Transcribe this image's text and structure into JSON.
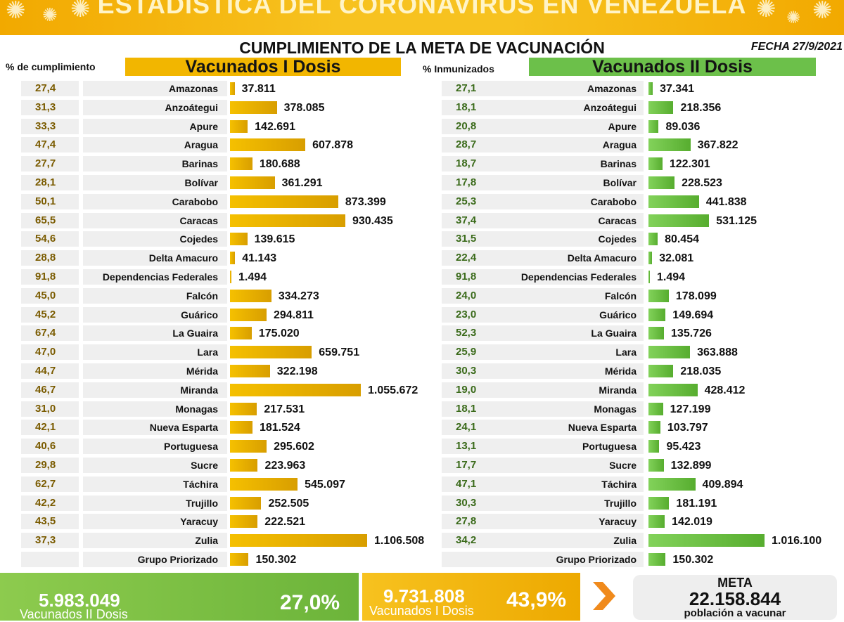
{
  "header": {
    "banner": "ESTADÍSTICA DEL CORONAVIRUS EN VENEZUELA",
    "title": "CUMPLIMIENTO DE LA META DE VACUNACIÓN",
    "date": "FECHA 27/9/2021"
  },
  "left_section": {
    "pct_header": "% de cumplimiento",
    "title": "Vacunados I Dosis",
    "accent": "#f2b600"
  },
  "right_section": {
    "pct_header": "% Inmunizados",
    "title": "Vacunados II Dosis",
    "accent": "#6cc04a"
  },
  "chart_data": [
    {
      "type": "bar",
      "title": "Vacunados I Dosis",
      "xlabel": "",
      "ylabel": "% de cumplimiento",
      "categories": [
        "Amazonas",
        "Anzoátegui",
        "Apure",
        "Aragua",
        "Barinas",
        "Bolívar",
        "Carabobo",
        "Caracas",
        "Cojedes",
        "Delta Amacuro",
        "Dependencias Federales",
        "Falcón",
        "Guárico",
        "La Guaira",
        "Lara",
        "Mérida",
        "Miranda",
        "Monagas",
        "Nueva Esparta",
        "Portuguesa",
        "Sucre",
        "Táchira",
        "Trujillo",
        "Yaracuy",
        "Zulia",
        "Grupo Priorizado"
      ],
      "values": [
        37811,
        378085,
        142691,
        607878,
        180688,
        361291,
        873399,
        930435,
        139615,
        41143,
        1494,
        334273,
        294811,
        175020,
        659751,
        322198,
        1055672,
        217531,
        181524,
        295602,
        223963,
        545097,
        252505,
        222521,
        1106508,
        150302
      ],
      "value_labels": [
        "37.811",
        "378.085",
        "142.691",
        "607.878",
        "180.688",
        "361.291",
        "873.399",
        "930.435",
        "139.615",
        "41.143",
        "1.494",
        "334.273",
        "294.811",
        "175.020",
        "659.751",
        "322.198",
        "1.055.672",
        "217.531",
        "181.524",
        "295.602",
        "223.963",
        "545.097",
        "252.505",
        "222.521",
        "1.106.508",
        "150.302"
      ],
      "percent_labels": [
        "27,4",
        "31,3",
        "33,3",
        "47,4",
        "27,7",
        "28,1",
        "50,1",
        "65,5",
        "54,6",
        "28,8",
        "91,8",
        "45,0",
        "45,2",
        "67,4",
        "47,0",
        "44,7",
        "46,7",
        "31,0",
        "42,1",
        "40,6",
        "29,8",
        "62,7",
        "42,2",
        "43,5",
        "37,3",
        ""
      ],
      "xlim": [
        0,
        1106508
      ],
      "grid": false,
      "legend": "none",
      "color": "#f2b600"
    },
    {
      "type": "bar",
      "title": "Vacunados II Dosis",
      "xlabel": "",
      "ylabel": "% Inmunizados",
      "categories": [
        "Amazonas",
        "Anzoátegui",
        "Apure",
        "Aragua",
        "Barinas",
        "Bolívar",
        "Carabobo",
        "Caracas",
        "Cojedes",
        "Delta Amacuro",
        "Dependencias Federales",
        "Falcón",
        "Guárico",
        "La Guaira",
        "Lara",
        "Mérida",
        "Miranda",
        "Monagas",
        "Nueva Esparta",
        "Portuguesa",
        "Sucre",
        "Táchira",
        "Trujillo",
        "Yaracuy",
        "Zulia",
        "Grupo Priorizado"
      ],
      "values": [
        37341,
        218356,
        89036,
        367822,
        122301,
        228523,
        441838,
        531125,
        80454,
        32081,
        1494,
        178099,
        149694,
        135726,
        363888,
        218035,
        428412,
        127199,
        103797,
        95423,
        132899,
        409894,
        181191,
        142019,
        1016100,
        150302
      ],
      "value_labels": [
        "37.341",
        "218.356",
        "89.036",
        "367.822",
        "122.301",
        "228.523",
        "441.838",
        "531.125",
        "80.454",
        "32.081",
        "1.494",
        "178.099",
        "149.694",
        "135.726",
        "363.888",
        "218.035",
        "428.412",
        "127.199",
        "103.797",
        "95.423",
        "132.899",
        "409.894",
        "181.191",
        "142.019",
        "1.016.100",
        "150.302"
      ],
      "percent_labels": [
        "27,1",
        "18,1",
        "20,8",
        "28,7",
        "18,7",
        "17,8",
        "25,3",
        "37,4",
        "31,5",
        "22,4",
        "91,8",
        "24,0",
        "23,0",
        "52,3",
        "25,9",
        "30,3",
        "19,0",
        "18,1",
        "24,1",
        "13,1",
        "17,7",
        "47,1",
        "30,3",
        "27,8",
        "34,2",
        ""
      ],
      "xlim": [
        0,
        1016100
      ],
      "grid": false,
      "legend": "none",
      "color": "#6cc04a"
    }
  ],
  "footer": {
    "second_dose_total": "5.983.049",
    "second_dose_label": "Vacunados II Dosis",
    "second_dose_pct": "27,0%",
    "first_dose_total": "9.731.808",
    "first_dose_label": "Vacunados I Dosis",
    "first_dose_pct": "43,9%",
    "meta_label": "META",
    "meta_value": "22.158.844",
    "meta_sub": "población a vacunar"
  }
}
